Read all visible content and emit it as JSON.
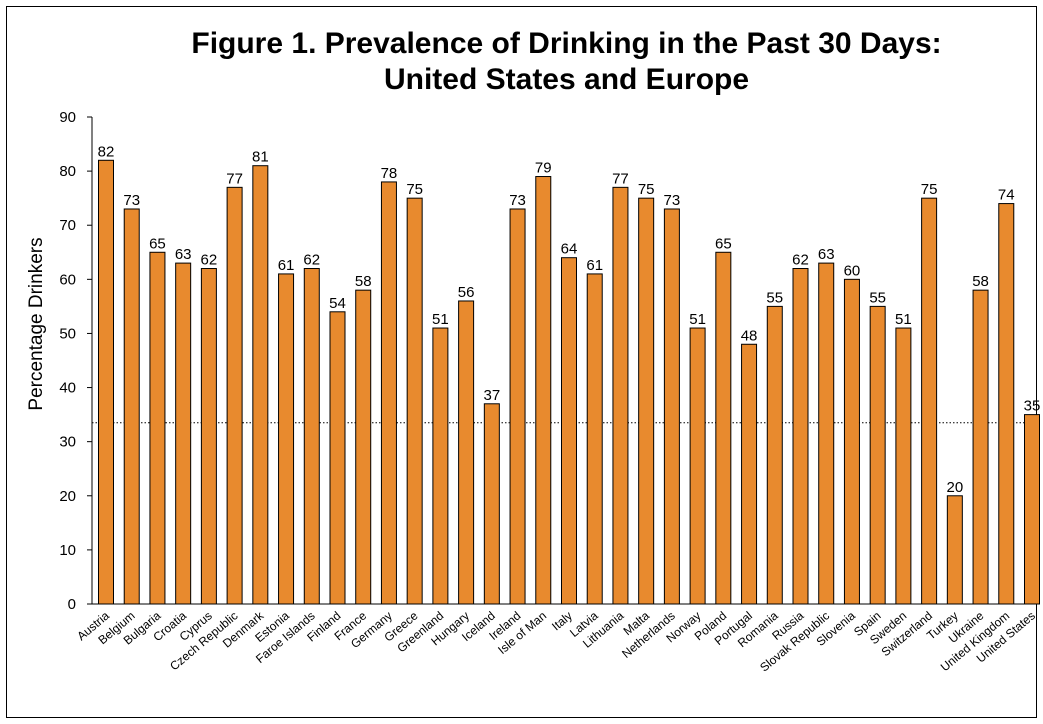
{
  "chart_data": {
    "type": "bar",
    "title_lines": [
      "Figure 1. Prevalence of Drinking in the Past 30 Days:",
      "United States and Europe"
    ],
    "xlabel": "",
    "ylabel": "Percentage Drinkers",
    "ylim": [
      0,
      90
    ],
    "yticks": [
      0,
      10,
      20,
      30,
      40,
      50,
      60,
      70,
      80,
      90
    ],
    "reference_line": 33.5,
    "categories": [
      "Austria",
      "Belgium",
      "Bulgaria",
      "Croatia",
      "Cyprus",
      "Czech Republic",
      "Denmark",
      "Estonia",
      "Faroe Islands",
      "Finland",
      "France",
      "Germany",
      "Greece",
      "Greenland",
      "Hungary",
      "Iceland",
      "Ireland",
      "Isle of Man",
      "Italy",
      "Latvia",
      "Lithuania",
      "Malta",
      "Netherlands",
      "Norway",
      "Poland",
      "Portugal",
      "Romania",
      "Russia",
      "Slovak Republic",
      "Slovenia",
      "Spain",
      "Sweden",
      "Switzerland",
      "Turkey",
      "Ukraine",
      "United Kingdom",
      "United States"
    ],
    "values": [
      82,
      73,
      65,
      63,
      62,
      77,
      81,
      61,
      62,
      54,
      58,
      78,
      75,
      51,
      56,
      37,
      73,
      79,
      64,
      61,
      77,
      75,
      73,
      51,
      65,
      48,
      55,
      62,
      63,
      60,
      55,
      51,
      75,
      20,
      58,
      74,
      35
    ],
    "bar_color": "#E88A2E",
    "bar_edge_color": "#000000",
    "grid": false,
    "legend": "none"
  }
}
